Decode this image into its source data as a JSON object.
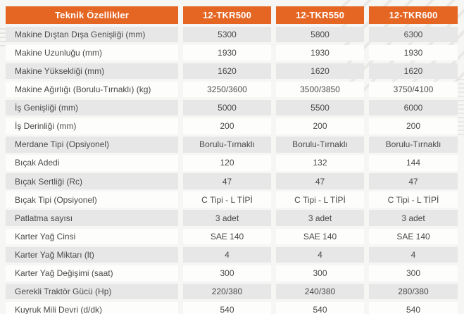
{
  "colors": {
    "accent_orange": "#E56522",
    "row_shaded": "#e8e7e7",
    "row_plain": "#fdfdfc",
    "page_background": "#f6f6f5",
    "header_text": "#ffffff",
    "body_text": "#4a4a4a"
  },
  "table": {
    "header": {
      "label": "Teknik Özellikler",
      "columns": [
        "12-TKR500",
        "12-TKR550",
        "12-TKR600"
      ]
    },
    "rows": [
      {
        "label": "Makine Dıştan Dışa Genişliği (mm)",
        "values": [
          "5300",
          "5800",
          "6300"
        ]
      },
      {
        "label": "Makine Uzunluğu (mm)",
        "values": [
          "1930",
          "1930",
          "1930"
        ]
      },
      {
        "label": "Makine Yüksekliği (mm)",
        "values": [
          "1620",
          "1620",
          "1620"
        ]
      },
      {
        "label": "Makine Ağırlığı (Borulu-Tırnaklı) (kg)",
        "values": [
          "3250/3600",
          "3500/3850",
          "3750/4100"
        ]
      },
      {
        "label": "İş Genişliği (mm)",
        "values": [
          "5000",
          "5500",
          "6000"
        ]
      },
      {
        "label": "İş Derinliği (mm)",
        "values": [
          "200",
          "200",
          "200"
        ]
      },
      {
        "label": "Merdane Tipi (Opsiyonel)",
        "values": [
          "Borulu-Tırnaklı",
          "Borulu-Tırnaklı",
          "Borulu-Tırnaklı"
        ]
      },
      {
        "label": "Bıçak Adedi",
        "values": [
          "120",
          "132",
          "144"
        ]
      },
      {
        "label": "Bıçak Sertliği (Rc)",
        "values": [
          "47",
          "47",
          "47"
        ]
      },
      {
        "label": "Bıçak Tipi (Opsiyonel)",
        "values": [
          "C Tipi - L TİPİ",
          "C Tipi - L TİPİ",
          "C Tipi - L TİPİ"
        ]
      },
      {
        "label": "Patlatma sayısı",
        "values": [
          "3 adet",
          "3 adet",
          "3 adet"
        ]
      },
      {
        "label": "Karter Yağ Cinsi",
        "values": [
          "SAE 140",
          "SAE 140",
          "SAE 140"
        ]
      },
      {
        "label": "Karter Yağ Miktarı (lt)",
        "values": [
          "4",
          "4",
          "4"
        ]
      },
      {
        "label": "Karter Yağ Değişimi (saat)",
        "values": [
          "300",
          "300",
          "300"
        ]
      },
      {
        "label": "Gerekli Traktör Gücü (Hp)",
        "values": [
          "220/380",
          "240/380",
          "280/380"
        ]
      },
      {
        "label": "Kuyruk Mili Devri (d/dk)",
        "values": [
          "540",
          "540",
          "540"
        ]
      }
    ]
  }
}
